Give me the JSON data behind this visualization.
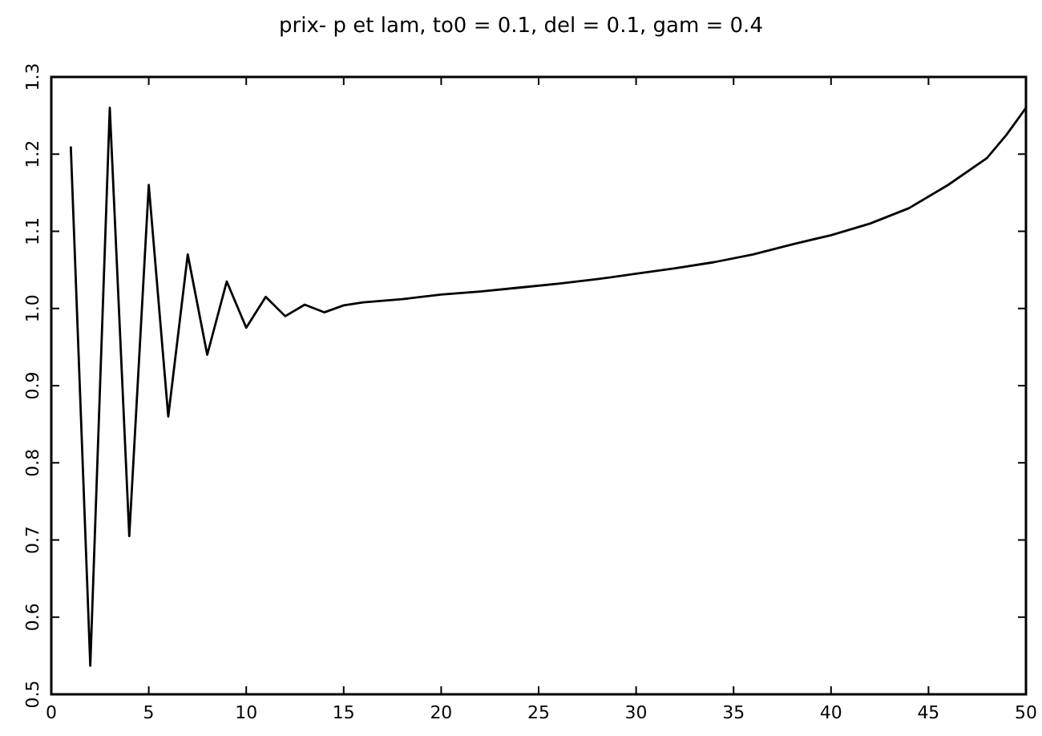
{
  "chart_data": {
    "type": "line",
    "title": "prix- p et lam, to0 = 0.1, del = 0.1, gam = 0.4",
    "x": [
      1,
      2,
      3,
      4,
      5,
      6,
      7,
      8,
      9,
      10,
      11,
      12,
      13,
      14,
      15,
      16,
      18,
      20,
      22,
      24,
      26,
      28,
      30,
      32,
      34,
      36,
      38,
      40,
      42,
      44,
      46,
      48,
      49,
      50
    ],
    "series": [
      {
        "color": "#000000",
        "values": [
          1.21,
          0.537,
          1.26,
          0.705,
          1.16,
          0.86,
          1.07,
          0.94,
          1.035,
          0.975,
          1.015,
          0.99,
          1.005,
          0.995,
          1.004,
          1.008,
          1.012,
          1.018,
          1.022,
          1.027,
          1.032,
          1.038,
          1.045,
          1.052,
          1.06,
          1.07,
          1.083,
          1.095,
          1.11,
          1.13,
          1.16,
          1.195,
          1.225,
          1.26
        ]
      }
    ],
    "xlim": [
      0,
      50
    ],
    "xticks": [
      0,
      5,
      10,
      15,
      20,
      25,
      30,
      35,
      40,
      45,
      50
    ],
    "ylim": [
      0.5,
      1.3
    ],
    "yticks": [
      0.5,
      0.6,
      0.7,
      0.8,
      0.9,
      {
        "value": 1.0,
        "label": "1.0"
      },
      1.1,
      1.2,
      1.3
    ],
    "grid": false,
    "marker": "none",
    "line_style": "solid"
  }
}
